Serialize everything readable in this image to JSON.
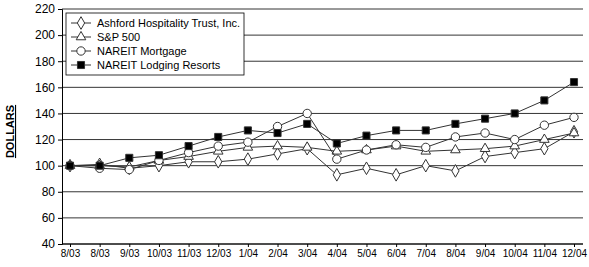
{
  "chart_data": {
    "type": "line",
    "y_label": "DOLLARS",
    "categories": [
      "8/03",
      "8/03",
      "9/03",
      "10/03",
      "11/03",
      "12/03",
      "1/04",
      "2/04",
      "3/04",
      "4/04",
      "5/04",
      "6/04",
      "7/04",
      "8/04",
      "9/04",
      "10/04",
      "11/04",
      "12/04"
    ],
    "series": [
      {
        "name": "Ashford Hospitality Trust, Inc.",
        "color": "#333333",
        "marker": "diamond",
        "values": [
          100,
          101,
          98,
          100,
          103,
          103,
          105,
          109,
          113,
          93,
          98,
          93,
          100,
          96,
          107,
          110,
          113,
          126
        ]
      },
      {
        "name": "S&P 500",
        "color": "#333333",
        "marker": "triangle",
        "values": [
          100,
          100,
          99,
          104,
          107,
          111,
          114,
          115,
          114,
          111,
          112,
          115,
          111,
          112,
          113,
          115,
          120,
          125
        ]
      },
      {
        "name": "NAREIT Mortgage",
        "color": "#333333",
        "marker": "circle",
        "values": [
          100,
          98,
          97,
          104,
          110,
          115,
          118,
          130,
          140,
          105,
          112,
          116,
          114,
          122,
          125,
          120,
          131,
          137
        ]
      },
      {
        "name": "NAREIT Lodging Resorts",
        "color": "#333333",
        "marker": "square",
        "values": [
          100,
          100,
          106,
          108,
          115,
          122,
          127,
          125,
          132,
          117,
          123,
          127,
          127,
          132,
          136,
          140,
          150,
          164
        ]
      }
    ],
    "ylim": [
      40,
      220
    ],
    "yticks": [
      40,
      60,
      80,
      100,
      120,
      140,
      160,
      180,
      200,
      220
    ],
    "grid": true,
    "legend": "upper left"
  }
}
